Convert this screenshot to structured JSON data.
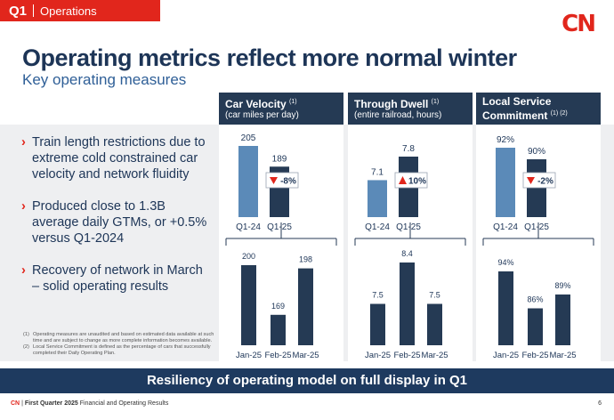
{
  "tag": {
    "quarter": "Q1",
    "section": "Operations"
  },
  "logo": "CN",
  "title": "Operating metrics reflect more normal winter",
  "subtitle": "Key operating measures",
  "bullets": [
    "Train length restrictions due to extreme cold constrained car velocity and network fluidity",
    "Produced close to 1.3B average daily GTMs, or +0.5% versus Q1-2024",
    "Recovery of network in March – solid operating results"
  ],
  "notes": [
    {
      "num": "(1)",
      "text": "Operating measures are unaudited and based on estimated data available at such time and are subject to change as more complete information becomes available."
    },
    {
      "num": "(2)",
      "text": "Local Service Commitment is defined as the percentage of cars that successfully completed their Daily Operating Plan."
    }
  ],
  "banner": "Resiliency of operating model on full display in Q1",
  "footer": {
    "cn": "CN",
    "sep": "|",
    "period": "First Quarter 2025",
    "rest": "Financial and Operating Results",
    "page": "6"
  },
  "colors": {
    "navy": "#253a54",
    "light_bar": "#5b8ab8",
    "red": "#e1261c"
  },
  "chart_data": [
    {
      "type": "bar",
      "title": "Car Velocity",
      "title_note": "(1)",
      "subtitle": "(car miles per day)",
      "quarterly": {
        "categories": [
          "Q1-24",
          "Q1-25"
        ],
        "values": [
          205,
          189
        ],
        "labels": [
          "205",
          "189"
        ],
        "change": "-8%",
        "direction": "down"
      },
      "monthly": {
        "categories": [
          "Jan-25",
          "Feb-25",
          "Mar-25"
        ],
        "values": [
          200,
          169,
          198
        ],
        "labels": [
          "200",
          "169",
          "198"
        ]
      }
    },
    {
      "type": "bar",
      "title": "Through Dwell",
      "title_note": "(1)",
      "subtitle": "(entire railroad, hours)",
      "quarterly": {
        "categories": [
          "Q1-24",
          "Q1-25"
        ],
        "values": [
          7.1,
          7.8
        ],
        "labels": [
          "7.1",
          "7.8"
        ],
        "change": "10%",
        "direction": "up"
      },
      "monthly": {
        "categories": [
          "Jan-25",
          "Feb-25",
          "Mar-25"
        ],
        "values": [
          7.5,
          8.4,
          7.5
        ],
        "labels": [
          "7.5",
          "8.4",
          "7.5"
        ]
      }
    },
    {
      "type": "bar",
      "title": "Local Service Commitment",
      "title_note": "(1) (2)",
      "subtitle": "",
      "quarterly": {
        "categories": [
          "Q1-24",
          "Q1-25"
        ],
        "values": [
          92,
          90
        ],
        "labels": [
          "92%",
          "90%"
        ],
        "change": "-2%",
        "direction": "down"
      },
      "monthly": {
        "categories": [
          "Jan-25",
          "Feb-25",
          "Mar-25"
        ],
        "values": [
          94,
          86,
          89
        ],
        "labels": [
          "94%",
          "86%",
          "89%"
        ]
      }
    }
  ]
}
